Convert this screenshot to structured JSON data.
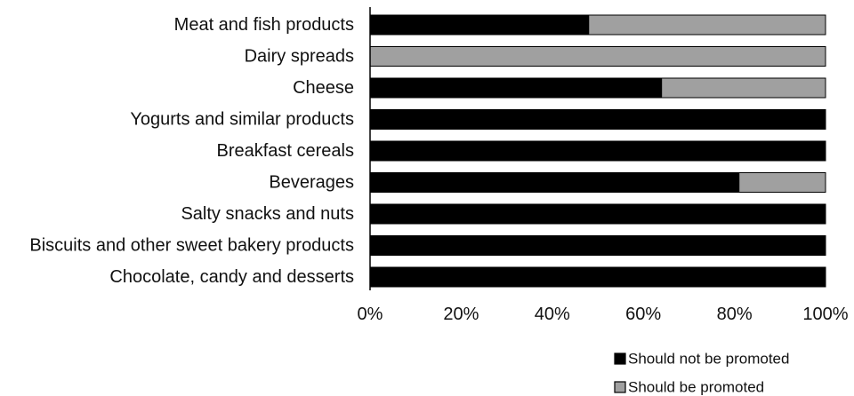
{
  "chart_data": {
    "type": "bar",
    "orientation": "horizontal",
    "stacked": true,
    "percent_stacked": true,
    "categories": [
      "Meat and fish products",
      "Dairy spreads",
      "Cheese",
      "Yogurts and similar products",
      "Breakfast cereals",
      "Beverages",
      "Salty snacks and nuts",
      "Biscuits and other sweet bakery products",
      "Chocolate, candy and desserts"
    ],
    "series": [
      {
        "name": "Should not be promoted",
        "color": "#000000",
        "values": [
          48,
          0,
          64,
          100,
          100,
          81,
          100,
          100,
          100
        ]
      },
      {
        "name": "Should be promoted",
        "color": "#a0a0a0",
        "values": [
          52,
          100,
          36,
          0,
          0,
          19,
          0,
          0,
          0
        ]
      }
    ],
    "x_ticks": [
      "0%",
      "20%",
      "40%",
      "60%",
      "80%",
      "100%"
    ],
    "xlim": [
      0,
      100
    ],
    "grid": false,
    "legend_position": "bottom-right"
  }
}
